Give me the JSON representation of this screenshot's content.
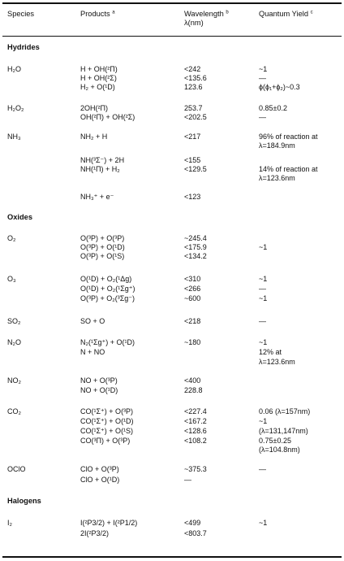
{
  "headers": {
    "species": "Species",
    "products": "Products",
    "products_mark": "a",
    "wavelength": "Wavelength",
    "wavelength_mark": "b",
    "wavelength_unit": "λ(nm)",
    "quantum_yield": "Quantum Yield",
    "quantum_yield_mark": "c"
  },
  "sections": {
    "hydrides": "Hydrides",
    "oxides": "Oxides",
    "halogens": "Halogens"
  },
  "rows": [
    {
      "species": "H₂O",
      "products": "H + OH(²Π)",
      "wavelength": "<242",
      "yield": "~1"
    },
    {
      "products": "H + OH(²Σ)",
      "wavelength": "<135.6",
      "yield": "—"
    },
    {
      "products": "H₂ + O(¹D)",
      "wavelength": "123.6",
      "yield": "ϕ(ϕ₁+ϕ₂)~0.3"
    },
    {
      "species": "H₂O₂",
      "products": "2OH(²Π)",
      "wavelength": "253.7",
      "yield": "0.85±0.2"
    },
    {
      "products": "OH(²Π) + OH(²Σ)",
      "wavelength": "<202.5",
      "yield": "—"
    },
    {
      "species": "NH₃",
      "products": "NH₂ + H",
      "wavelength": "<217",
      "yield": "96% of reaction at",
      "yield2": "λ=184.9nm"
    },
    {
      "products": "NH(³Σ⁻) + 2H",
      "wavelength": "<155"
    },
    {
      "products": "NH(¹Π) + H₂",
      "wavelength": "<129.5",
      "yield": "14% of reaction at",
      "yield2": "λ=123.6nm"
    },
    {
      "products": "NH₃⁺ + e⁻",
      "wavelength": "<123"
    },
    {
      "species": "O₂",
      "products": "O(³P) + O(³P)",
      "wavelength": "~245.4"
    },
    {
      "products": "O(³P) + O(¹D)",
      "wavelength": "<175.9",
      "yield": "~1"
    },
    {
      "products": "O(³P) + O(¹S)",
      "wavelength": "<134.2"
    },
    {
      "species": "O₃",
      "products": "O(¹D) + O₂(¹Δg)",
      "wavelength": "<310",
      "yield": "~1"
    },
    {
      "products": "O(¹D) + O₂(¹Σg⁺)",
      "wavelength": "<266",
      "yield": "—"
    },
    {
      "products": "O(³P) + O₂(³Σg⁻)",
      "wavelength": "~600",
      "yield": "~1"
    },
    {
      "species": "SO₂",
      "products": "SO + O",
      "wavelength": "<218",
      "yield": "—"
    },
    {
      "species": "N₂O",
      "products": "N₂(¹Σg⁺) + O(¹D)",
      "wavelength": "~180",
      "yield": "~1"
    },
    {
      "products": "N + NO",
      "yield": "12% at",
      "yield2": "λ=123.6nm"
    },
    {
      "species": "NO₂",
      "products": "NO + O(³P)",
      "wavelength": "<400"
    },
    {
      "products": "NO + O(¹D)",
      "wavelength": "228.8"
    },
    {
      "species": "CO₂",
      "products": "CO(¹Σ⁺) + O(³P)",
      "wavelength": "<227.4",
      "yield": "0.06 (λ=157nm)"
    },
    {
      "products": "CO(¹Σ⁺) + O(¹D)",
      "wavelength": "<167.2",
      "yield": "~1"
    },
    {
      "products": "CO(¹Σ⁺) + O(¹S)",
      "wavelength": "<128.6",
      "yield": "(λ=131,147nm)"
    },
    {
      "products": "CO(³Π) + O(³P)",
      "wavelength": "<108.2",
      "yield": "0.75±0.25",
      "yield2": "(λ=104.8nm)"
    },
    {
      "species": "OClO",
      "products": "ClO + O(³P)",
      "wavelength": "~375.3",
      "yield": "—"
    },
    {
      "products": "ClO + O(¹D)",
      "wavelength": "—"
    },
    {
      "species": "I₂",
      "products": "I(²P3/2) + I(²P1/2)",
      "wavelength": "<499",
      "yield": "~1"
    },
    {
      "products": "2I(²P3/2)",
      "wavelength": "<803.7"
    }
  ]
}
